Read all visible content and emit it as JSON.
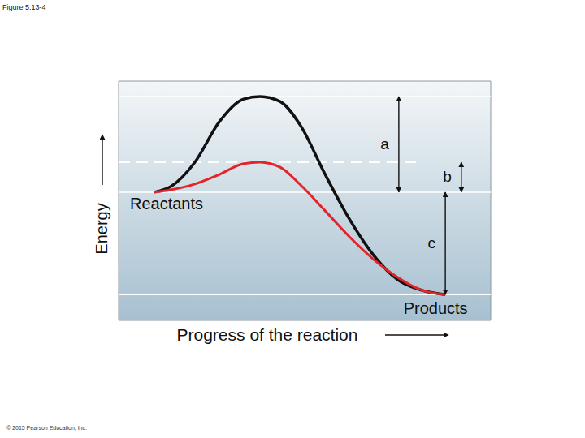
{
  "chart_data": {
    "type": "line",
    "title": "Figure 5.13-4",
    "xlabel": "Progress of the reaction",
    "ylabel": "Energy",
    "source": "© 2015 Pearson Education, Inc.",
    "start_label": "Reactants",
    "end_label": "Products",
    "x": [
      9.6,
      14,
      20.5,
      27.1,
      33.6,
      38,
      43.4,
      48.9,
      55.5,
      62,
      68.6,
      75.1,
      81.7,
      87.8
    ],
    "series": [
      {
        "color": "#111111",
        "values": [
          53.6,
          55.9,
          66.1,
          83.1,
          92.5,
          93.6,
          91.5,
          81.4,
          61,
          42.4,
          27.1,
          16.9,
          12.5,
          10.8
        ]
      },
      {
        "color": "#e0262b",
        "values": [
          53.6,
          54.6,
          57,
          61,
          65.5,
          66.1,
          64,
          56.6,
          45.8,
          35,
          25.4,
          17.9,
          12.5,
          10.8
        ]
      }
    ],
    "annotations": [
      {
        "text": "a",
        "from": 93.6,
        "to": 53.6
      },
      {
        "text": "b",
        "from": 66.1,
        "to": 53.6
      },
      {
        "text": "c",
        "from": 53.6,
        "to": 10.8
      }
    ],
    "xlim": [
      0,
      100
    ],
    "ylim": [
      0,
      100
    ],
    "tick_labels": false
  }
}
